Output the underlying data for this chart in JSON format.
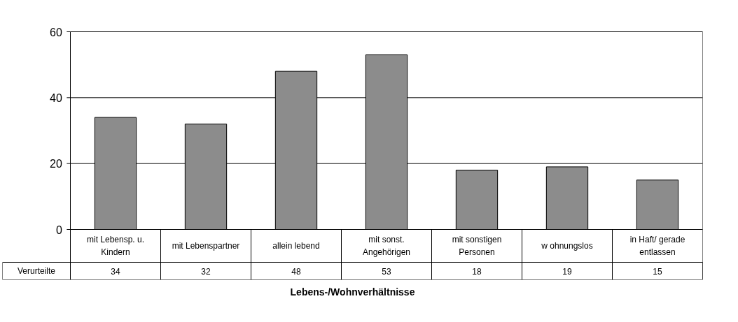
{
  "chart_data": {
    "type": "bar",
    "xlabel": "Lebens-/Wohnverhältnisse",
    "categories": [
      "mit Lebensp. u.\nKindern",
      "mit Lebenspartner",
      "allein lebend",
      "mit sonst.\nAngehörigen",
      "mit sonstigen\nPersonen",
      "w ohnungslos",
      "in Haft/ gerade\nentlassen"
    ],
    "series": [
      {
        "name": "Verurteilte",
        "color": "#8c8c8c",
        "values": [
          34,
          32,
          48,
          53,
          18,
          19,
          15
        ]
      }
    ],
    "ylim": [
      0,
      60
    ],
    "yticks": [
      0,
      20,
      40,
      60
    ],
    "grid": "y",
    "data_labels": true
  }
}
